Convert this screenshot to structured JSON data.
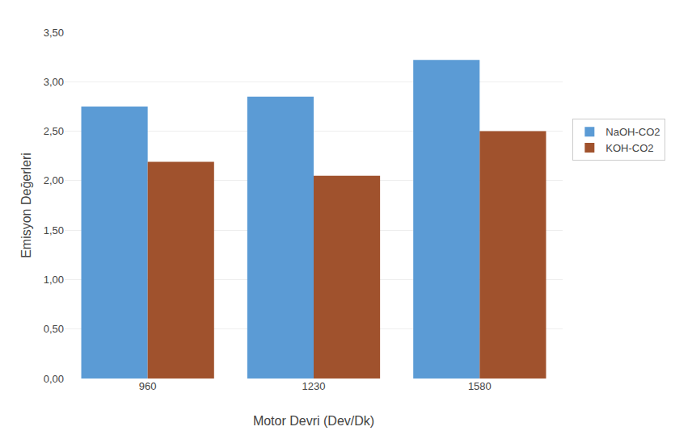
{
  "chart_data": {
    "type": "bar",
    "xlabel": "Motor Devri (Dev/Dk)",
    "ylabel": "Emisyon Değerleri",
    "categories": [
      "960",
      "1230",
      "1580"
    ],
    "series": [
      {
        "name": "NaOH-CO2",
        "color": "#5B9BD5",
        "values": [
          2.75,
          2.85,
          3.22
        ]
      },
      {
        "name": "KOH-CO2",
        "color": "#A0522D",
        "values": [
          2.19,
          2.05,
          2.5
        ]
      }
    ],
    "ylim": [
      0.0,
      3.5
    ],
    "yticks": [
      {
        "value": 0.0,
        "label": "0,00"
      },
      {
        "value": 0.5,
        "label": "0,50"
      },
      {
        "value": 1.0,
        "label": "1,00"
      },
      {
        "value": 1.5,
        "label": "1,50"
      },
      {
        "value": 2.0,
        "label": "2,00"
      },
      {
        "value": 2.5,
        "label": "2,50"
      },
      {
        "value": 3.0,
        "label": "3,00"
      },
      {
        "value": 3.5,
        "label": "3,50"
      }
    ],
    "grid": true,
    "legend": "right"
  }
}
